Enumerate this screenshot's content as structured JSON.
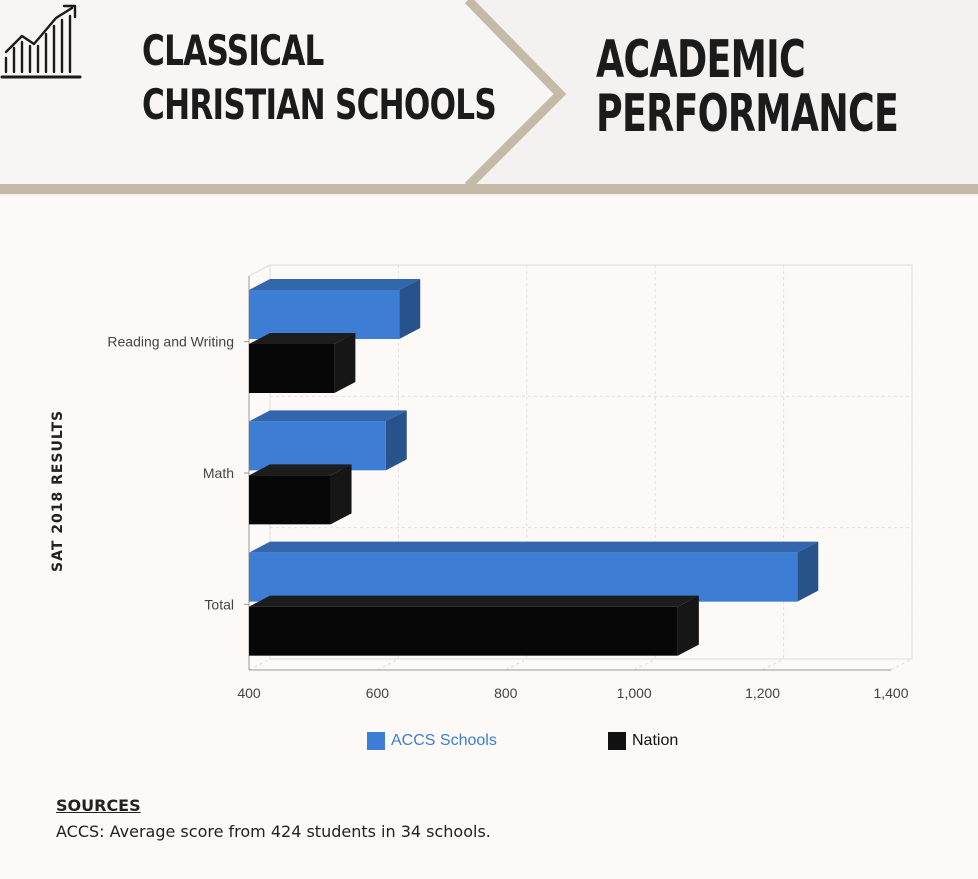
{
  "header": {
    "left_title_line1": "CLASSICAL",
    "left_title_line2": "CHRISTIAN SCHOOLS",
    "right_title_line1": "ACADEMIC",
    "right_title_line2": "PERFORMANCE",
    "icon": "trending-chart-icon",
    "accent_color": "#c5b9a8"
  },
  "chart_data": {
    "type": "bar",
    "orientation": "horizontal",
    "ylabel": "SAT 2018 RESULTS",
    "categories": [
      "Reading and Writing",
      "Math",
      "Total"
    ],
    "series": [
      {
        "name": "ACCS Schools",
        "color": "#3d7ed4",
        "values": [
          634,
          613,
          1254
        ]
      },
      {
        "name": "Nation",
        "color": "#111111",
        "values": [
          533,
          527,
          1068
        ]
      }
    ],
    "xlim": [
      400,
      1400
    ],
    "xticks": [
      "400",
      "600",
      "800",
      "1,000",
      "1,200",
      "1,400"
    ],
    "xtick_values": [
      400,
      600,
      800,
      1000,
      1200,
      1400
    ],
    "grid": true,
    "legend_position": "bottom"
  },
  "sources": {
    "heading": "SOURCES",
    "text": "ACCS: Average score from 424 students in 34 schools."
  }
}
